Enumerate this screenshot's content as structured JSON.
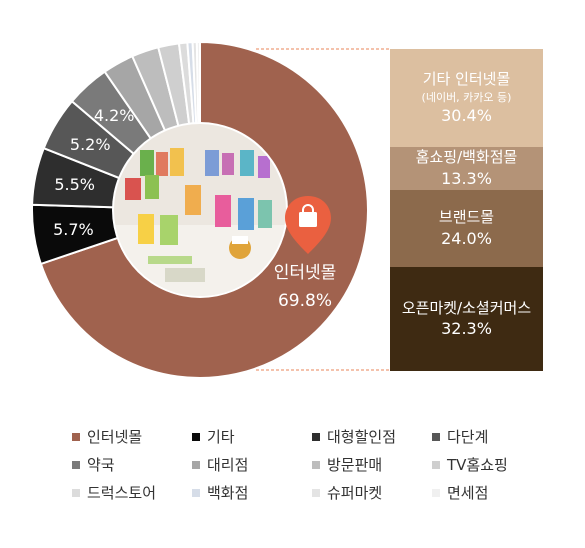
{
  "chart_data": {
    "type": "pie",
    "categories": [
      "인터넷몰",
      "기타",
      "대형할인점",
      "다단계",
      "약국",
      "대리점",
      "방문판매",
      "TV홈쇼핑",
      "드럭스토어",
      "백화점",
      "슈퍼마켓",
      "면세점"
    ],
    "values": [
      69.8,
      5.7,
      5.5,
      5.2,
      4.2,
      3.0,
      2.6,
      2.0,
      0.8,
      0.5,
      0.4,
      0.3
    ],
    "data_labels": [
      "69.8%",
      "5.7%",
      "5.5%",
      "5.2%",
      "4.2%",
      "",
      "",
      "",
      "",
      "",
      "",
      ""
    ],
    "colors": [
      "#a0624e",
      "#0a0a0a",
      "#2e2e2e",
      "#575757",
      "#7a7a7a",
      "#a6a6a6",
      "#bdbdbd",
      "#cfcfcf",
      "#dcdcdc",
      "#d6dde8",
      "#e4e4e4",
      "#f0f0f0"
    ],
    "highlight_label": "인터넷몰",
    "highlight_value": "69.8%",
    "legend_placement": "bottom",
    "breakdown": {
      "parent": "인터넷몰",
      "segments": [
        {
          "name": "기타 인터넷몰",
          "sub": "(네이버, 카카오 등)",
          "value": 30.4,
          "label": "30.4%",
          "color": "#dcbfa0"
        },
        {
          "name": "홈쇼핑/백화점몰",
          "sub": "",
          "value": 13.3,
          "label": "13.3%",
          "color": "#b49377"
        },
        {
          "name": "브랜드몰",
          "sub": "",
          "value": 24.0,
          "label": "24.0%",
          "color": "#8c6a4c"
        },
        {
          "name": "오픈마켓/소셜커머스",
          "sub": "",
          "value": 32.3,
          "label": "32.3%",
          "color": "#3e2a12"
        }
      ]
    }
  }
}
